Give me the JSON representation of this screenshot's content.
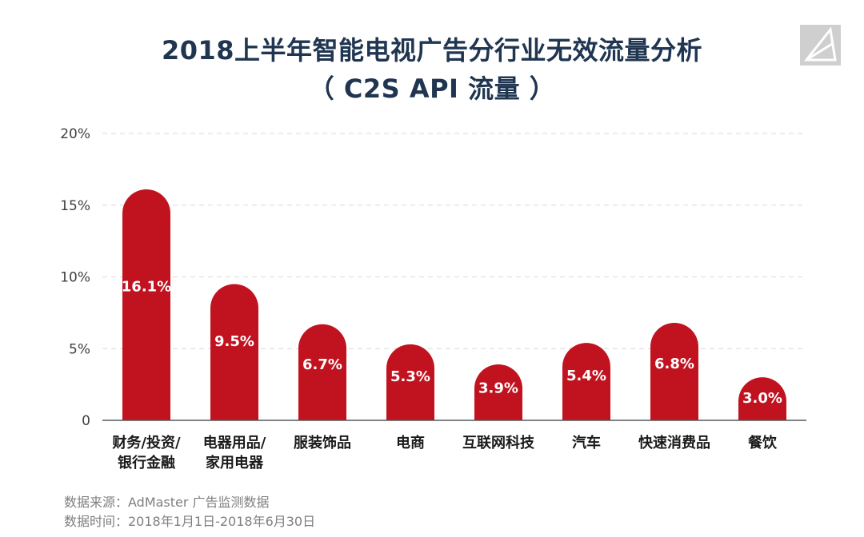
{
  "title_line1": "2018上半年智能电视广告分行业无效流量分析",
  "title_line2": "（ C2S API 流量 ）",
  "logo": {
    "icon": "triangle-logo-icon",
    "color": "#cfcfcf"
  },
  "chart_data": {
    "type": "bar",
    "categories": [
      [
        "财务/投资/",
        "银行金融"
      ],
      [
        "电器用品/",
        "家用电器"
      ],
      [
        "服装饰品"
      ],
      [
        "电商"
      ],
      [
        "互联网科技"
      ],
      [
        "汽车"
      ],
      [
        "快速消费品"
      ],
      [
        "餐饮"
      ]
    ],
    "values": [
      16.1,
      9.5,
      6.7,
      5.3,
      3.9,
      5.4,
      6.8,
      3.0
    ],
    "data_labels": [
      "16.1%",
      "9.5%",
      "6.7%",
      "5.3%",
      "3.9%",
      "5.4%",
      "6.8%",
      "3.0%"
    ],
    "y_ticks": [
      0,
      5,
      10,
      15,
      20
    ],
    "y_tick_labels": [
      "0",
      "5%",
      "10%",
      "15%",
      "20%"
    ],
    "ylim": [
      0,
      20
    ],
    "grid": true,
    "bar_color": "#c1121f",
    "grid_color": "#d9d9d9"
  },
  "footer": {
    "source": "数据来源：AdMaster 广告监测数据",
    "period": "数据时间：2018年1月1日-2018年6月30日"
  }
}
